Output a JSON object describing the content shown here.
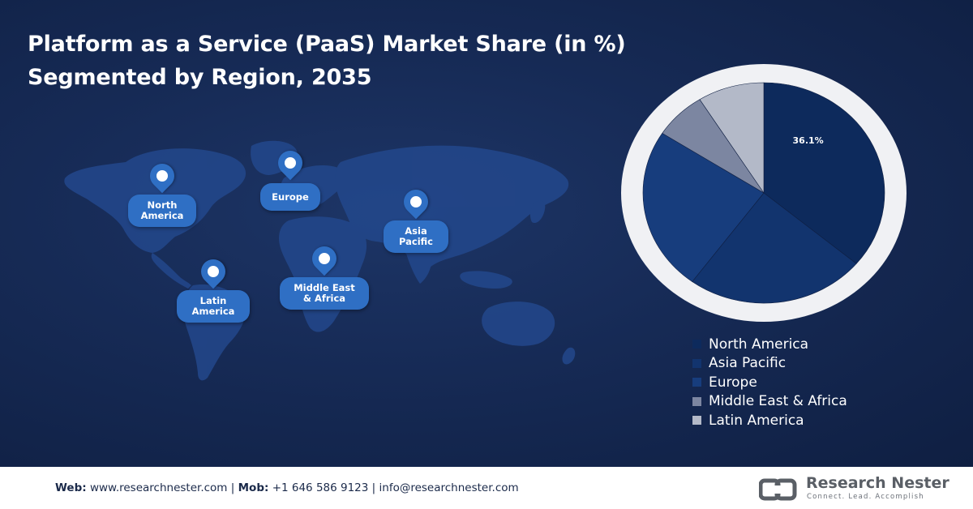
{
  "title": {
    "line1": "Platform as a Service (PaaS) Market Share (in %)",
    "line2": "Segmented by Region, 2035"
  },
  "map_labels": {
    "north_america": [
      "North",
      "America"
    ],
    "europe": [
      "Europe"
    ],
    "asia_pacific": [
      "Asia",
      "Pacific"
    ],
    "latin_america": [
      "Latin",
      "America"
    ],
    "middle_east_africa": [
      "Middle East",
      "& Africa"
    ]
  },
  "chart_data": {
    "type": "pie",
    "categories": [
      "North America",
      "Asia Pacific",
      "Europe",
      "Middle East & Africa",
      "Latin America"
    ],
    "values": [
      36.1,
      24.0,
      24.0,
      7.0,
      8.9
    ],
    "data_labels": [
      "36.1%",
      "",
      "",
      "",
      ""
    ],
    "colors": [
      "#0d2a5c",
      "#12346e",
      "#173d7d",
      "#7c86a1",
      "#b3b9c8"
    ],
    "legend_position": "bottom-right"
  },
  "colors": {
    "background": "#162a55",
    "pin": "#2f6fc4",
    "ring": "#f0f1f4"
  },
  "footer": {
    "web_label": "Web:",
    "web_value": "www.researchnester.com",
    "sep1": "|",
    "mob_label": "Mob:",
    "mob_value": "+1 646 586 9123",
    "sep2": "|",
    "email": "info@researchnester.com",
    "brand_name": "Research Nester",
    "brand_tagline": "Connect. Lead. Accomplish",
    "brand_icon": "research-nester-logo"
  }
}
